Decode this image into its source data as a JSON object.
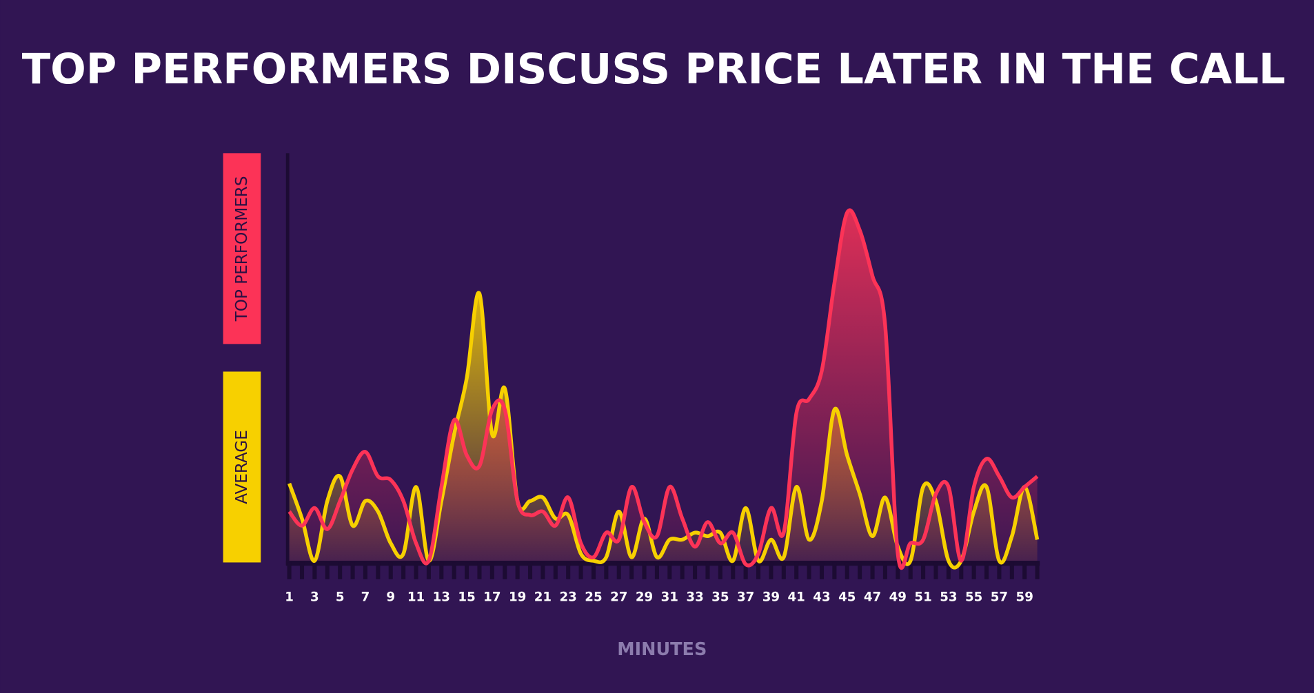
{
  "chart_data": {
    "type": "line",
    "title": "TOP PERFORMERS DISCUSS PRICE LATER IN THE CALL",
    "x_label": "MINUTES",
    "x": [
      1,
      2,
      3,
      4,
      5,
      6,
      7,
      8,
      9,
      10,
      11,
      12,
      13,
      14,
      15,
      16,
      17,
      18,
      19,
      20,
      21,
      22,
      23,
      24,
      25,
      26,
      27,
      28,
      29,
      30,
      31,
      32,
      33,
      34,
      35,
      36,
      37,
      38,
      39,
      40,
      41,
      42,
      43,
      44,
      45,
      46,
      47,
      48,
      49,
      50,
      51,
      52,
      53,
      54,
      55,
      56,
      57,
      58,
      59,
      60
    ],
    "xticks": [
      1,
      3,
      5,
      7,
      9,
      11,
      13,
      15,
      17,
      19,
      21,
      23,
      25,
      27,
      29,
      31,
      33,
      35,
      37,
      39,
      41,
      43,
      45,
      47,
      49,
      51,
      53,
      55,
      57,
      59
    ],
    "series": [
      {
        "name": "AVERAGE",
        "color": "#f7d000",
        "values": [
          22,
          12,
          0,
          17,
          24,
          10,
          17,
          14,
          5,
          2,
          21,
          0,
          17,
          36,
          52,
          76,
          36,
          49,
          17,
          17,
          18,
          12,
          13,
          2,
          0,
          1,
          14,
          1,
          12,
          1,
          6,
          6,
          8,
          7,
          8,
          0,
          15,
          0,
          6,
          1,
          21,
          6,
          17,
          43,
          30,
          19,
          7,
          18,
          4,
          0,
          21,
          17,
          0,
          0,
          14,
          21,
          0,
          7,
          21,
          6
        ]
      },
      {
        "name": "TOP PERFORMERS",
        "color": "#fc3357",
        "values": [
          14,
          10,
          15,
          9,
          17,
          26,
          31,
          24,
          23,
          17,
          5,
          0,
          21,
          40,
          30,
          27,
          43,
          43,
          17,
          13,
          14,
          10,
          18,
          5,
          1,
          8,
          6,
          21,
          11,
          7,
          21,
          12,
          4,
          11,
          5,
          8,
          -1,
          2,
          15,
          8,
          42,
          46,
          54,
          79,
          99,
          94,
          81,
          67,
          2,
          5,
          6,
          19,
          21,
          0,
          21,
          29,
          24,
          18,
          21,
          24
        ]
      }
    ]
  }
}
